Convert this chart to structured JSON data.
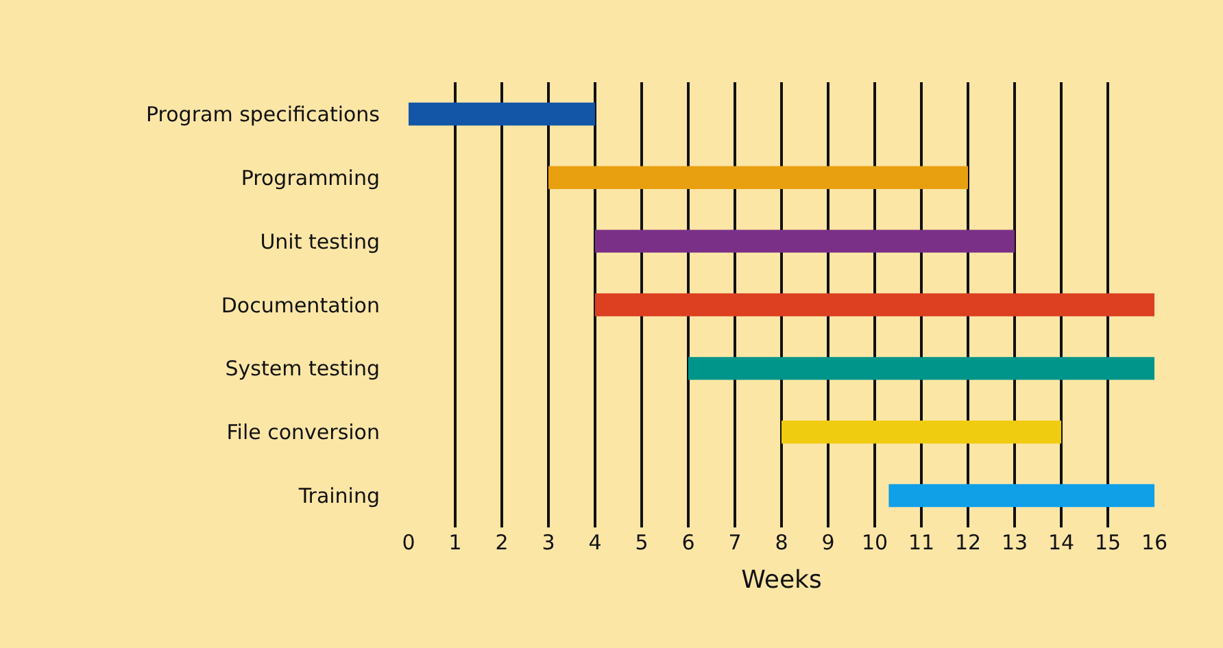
{
  "chart_data": {
    "type": "bar",
    "orientation": "horizontal",
    "xlabel": "Weeks",
    "categories": [
      "Program specifications",
      "Programming",
      "Unit testing",
      "Documentation",
      "System testing",
      "File conversion",
      "Training"
    ],
    "base": [
      0,
      3,
      4,
      4,
      6,
      8,
      10.3
    ],
    "values": [
      4,
      9,
      9,
      12,
      10,
      6,
      5.7
    ],
    "colors": [
      "#1356a8",
      "#e8a010",
      "#7b3088",
      "#dc4020",
      "#00958a",
      "#f0cc10",
      "#10a0e8"
    ],
    "xlim": [
      0,
      16
    ],
    "xticks": [
      0,
      1,
      2,
      3,
      4,
      5,
      6,
      7,
      8,
      9,
      10,
      11,
      12,
      13,
      14,
      15,
      16
    ],
    "grid": "x"
  }
}
